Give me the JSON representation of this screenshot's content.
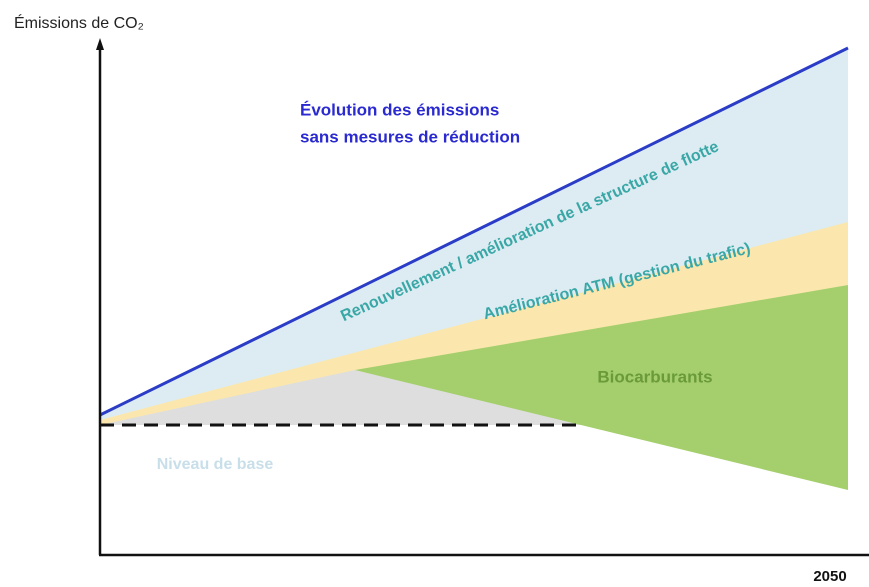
{
  "axes": {
    "y_label": "Émissions de CO₂",
    "x_end": "2050"
  },
  "baseline_title": [
    "Évolution des émissions",
    "sans mesures de réduction"
  ],
  "bands": {
    "fleet": "Renouvellement / amélioration de la structure de flotte",
    "atm": "Amélioration ATM (gestion du trafic)",
    "biofuel": "Biocarburants",
    "base": "Niveau de base"
  }
}
